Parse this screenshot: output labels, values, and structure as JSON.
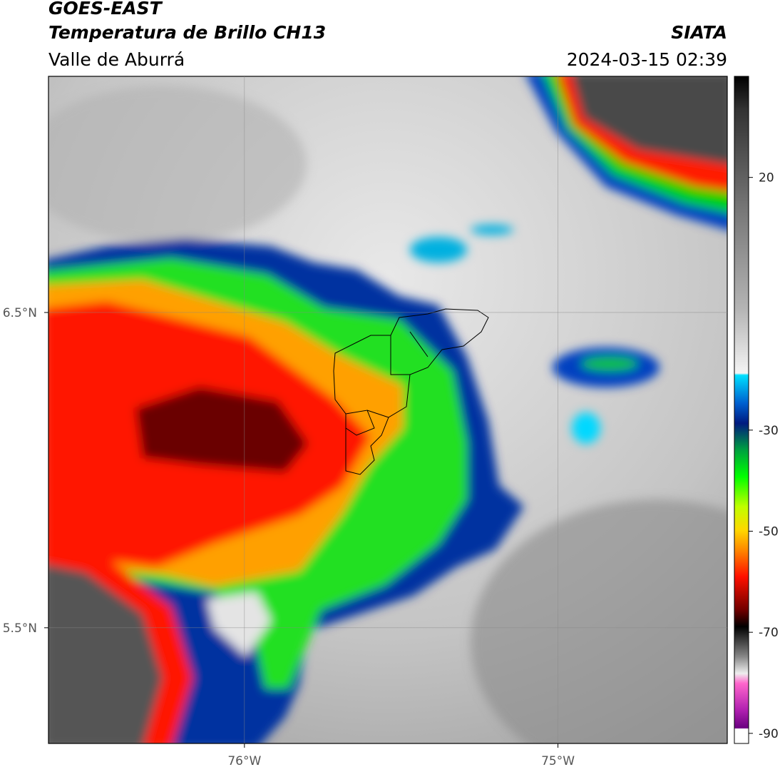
{
  "header": {
    "title": "GOES-EAST",
    "subtitle": "Temperatura de Brillo CH13",
    "region": "Valle de Aburrá",
    "source": "SIATA",
    "datetime": "2024-03-15 02:39"
  },
  "map": {
    "xlim": [
      -76.625,
      -74.46
    ],
    "ylim": [
      5.133,
      7.249
    ],
    "xticks": [
      {
        "value": -76,
        "label": "76°W"
      },
      {
        "value": -75,
        "label": "75°W"
      }
    ],
    "yticks": [
      {
        "value": 6.5,
        "label": "6.5°N"
      },
      {
        "value": 5.5,
        "label": "5.5°N"
      }
    ],
    "grid": true
  },
  "colorbar": {
    "lim": [
      -92,
      40
    ],
    "ticks": [
      20,
      -30,
      -50,
      -70,
      -90
    ]
  }
}
